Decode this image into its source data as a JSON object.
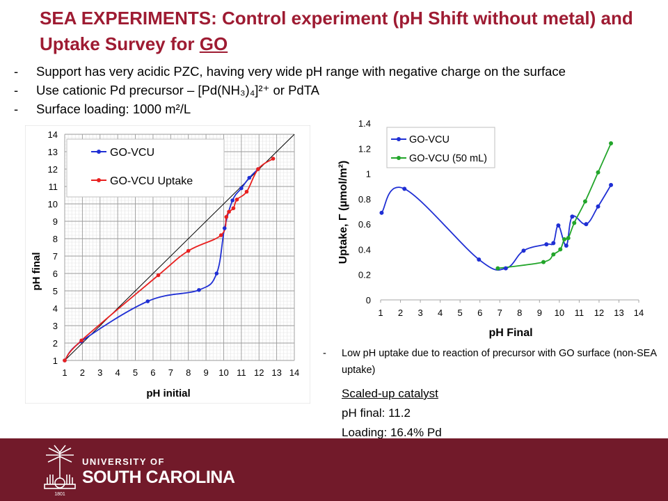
{
  "slide": {
    "title_part1": "SEA EXPERIMENTS: Control experiment (pH Shift without metal) and Uptake Survey for ",
    "title_part2": "GO",
    "bullets": [
      {
        "dash": "-",
        "text": "Support has very acidic PZC, having very wide pH range with negative charge on the surface"
      },
      {
        "dash": "-",
        "text": "Use cationic Pd precursor – [Pd(NH₃)₄]²⁺ or PdTA"
      },
      {
        "dash": "-",
        "text": "Surface loading: 1000 m²/L"
      }
    ],
    "note_dash": "-",
    "note": "Low pH uptake due to reaction of precursor with GO surface (non-SEA uptake)",
    "scaled_title": "Scaled-up catalyst",
    "scaled_ph": "pH final: 11.2",
    "scaled_loading": "Loading: 16.4% Pd",
    "footer": {
      "line1": "UNIVERSITY OF",
      "line2": "SOUTH CAROLINA",
      "logo_text": "1801"
    },
    "colors": {
      "title": "#9e1b32",
      "footer": "#721a2a",
      "blue": "#1f2fd4",
      "red": "#e8201f",
      "green": "#22a52a"
    }
  },
  "chart_data": [
    {
      "type": "line",
      "xlabel": "pH initial",
      "ylabel": "pH final",
      "xlim": [
        1,
        14
      ],
      "ylim": [
        1,
        14
      ],
      "xticks": [
        1,
        2,
        3,
        4,
        5,
        6,
        7,
        8,
        9,
        10,
        11,
        12,
        13,
        14
      ],
      "yticks": [
        1,
        2,
        3,
        4,
        5,
        6,
        7,
        8,
        9,
        10,
        11,
        12,
        13,
        14
      ],
      "grid": true,
      "legend": "top-left",
      "reference_line": [
        [
          1,
          1
        ],
        [
          14,
          14
        ]
      ],
      "series": [
        {
          "name": "GO-VCU",
          "color": "#1f2fd4",
          "x": [
            1,
            1.95,
            5.7,
            8.6,
            9.6,
            10.05,
            10.5,
            11,
            11.45,
            11.95
          ],
          "y": [
            1,
            2.1,
            4.4,
            5.05,
            6.0,
            8.6,
            10.2,
            10.9,
            11.5,
            12.0
          ]
        },
        {
          "name": "GO-VCU Uptake",
          "color": "#e8201f",
          "x": [
            1,
            1.95,
            6.3,
            8.0,
            9.85,
            10.15,
            10.3,
            10.55,
            10.75,
            11.3,
            11.95,
            12.8
          ],
          "y": [
            1,
            2.15,
            5.9,
            7.3,
            8.2,
            9.25,
            9.55,
            9.75,
            10.25,
            10.7,
            12.0,
            12.6
          ]
        }
      ]
    },
    {
      "type": "line",
      "xlabel": "pH Final",
      "ylabel": "Uptake, Γ (µmol/m²)",
      "xlim": [
        1,
        14
      ],
      "ylim": [
        0,
        1.4
      ],
      "xticks": [
        1,
        2,
        3,
        4,
        5,
        6,
        7,
        8,
        9,
        10,
        11,
        12,
        13,
        14
      ],
      "yticks": [
        "0",
        "0.2",
        "0.4",
        "0.6",
        "0.8",
        "1",
        "1.2",
        "1.4"
      ],
      "grid": false,
      "legend": "top-left",
      "series": [
        {
          "name": "GO-VCU",
          "color": "#1f2fd4",
          "x": [
            1.05,
            2.2,
            5.95,
            7.3,
            8.2,
            9.35,
            9.7,
            9.95,
            10.35,
            10.65,
            11.35,
            11.95,
            12.6
          ],
          "y": [
            0.69,
            0.88,
            0.32,
            0.25,
            0.39,
            0.44,
            0.45,
            0.59,
            0.43,
            0.66,
            0.6,
            0.74,
            0.91
          ]
        },
        {
          "name": "GO-VCU (50 mL)",
          "color": "#22a52a",
          "x": [
            6.9,
            9.2,
            9.7,
            10.05,
            10.25,
            10.45,
            10.75,
            11.3,
            11.95,
            12.6
          ],
          "y": [
            0.25,
            0.3,
            0.36,
            0.4,
            0.48,
            0.49,
            0.61,
            0.78,
            1.01,
            1.24
          ]
        }
      ]
    }
  ]
}
